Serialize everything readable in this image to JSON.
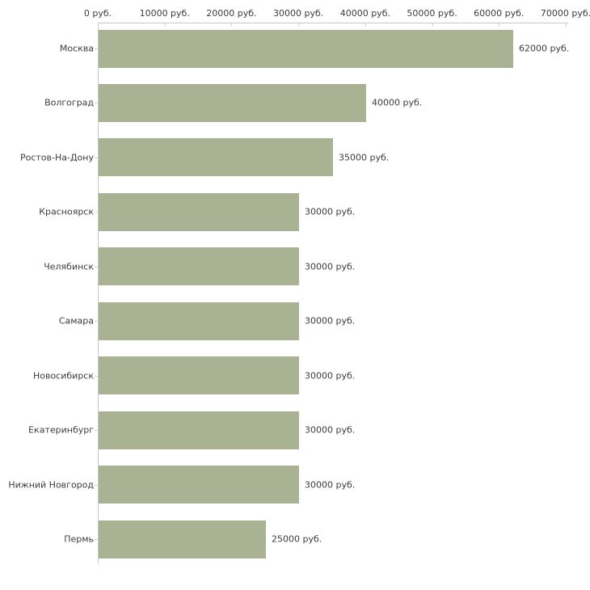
{
  "chart_data": {
    "type": "bar",
    "orientation": "horizontal",
    "title": "",
    "xlabel": "",
    "ylabel": "",
    "unit": "руб.",
    "categories": [
      "Москва",
      "Волгоград",
      "Ростов-На-Дону",
      "Красноярск",
      "Челябинск",
      "Самара",
      "Новосибирск",
      "Екатеринбург",
      "Нижний Новгород",
      "Пермь"
    ],
    "values": [
      62000,
      40000,
      35000,
      30000,
      30000,
      30000,
      30000,
      30000,
      30000,
      25000
    ],
    "value_labels": [
      "62000 руб.",
      "40000 руб.",
      "35000 руб.",
      "30000 руб.",
      "30000 руб.",
      "30000 руб.",
      "30000 руб.",
      "30000 руб.",
      "30000 руб.",
      "25000 руб."
    ],
    "x_ticks": [
      0,
      10000,
      20000,
      30000,
      40000,
      50000,
      60000,
      70000
    ],
    "x_tick_labels": [
      "0 руб.",
      "10000 руб.",
      "20000 руб.",
      "30000 руб.",
      "40000 руб.",
      "50000 руб.",
      "60000 руб.",
      "70000 руб."
    ],
    "xlim": [
      0,
      70000
    ],
    "grid": false,
    "legend": "none",
    "axis_position": "top-left",
    "colors": {
      "bar_fill": "#aab294",
      "axis_line": "#c9c9c2",
      "tick_mark": "#d4d7ba",
      "text": "#3c3c3c",
      "background": "#ffffff"
    }
  }
}
